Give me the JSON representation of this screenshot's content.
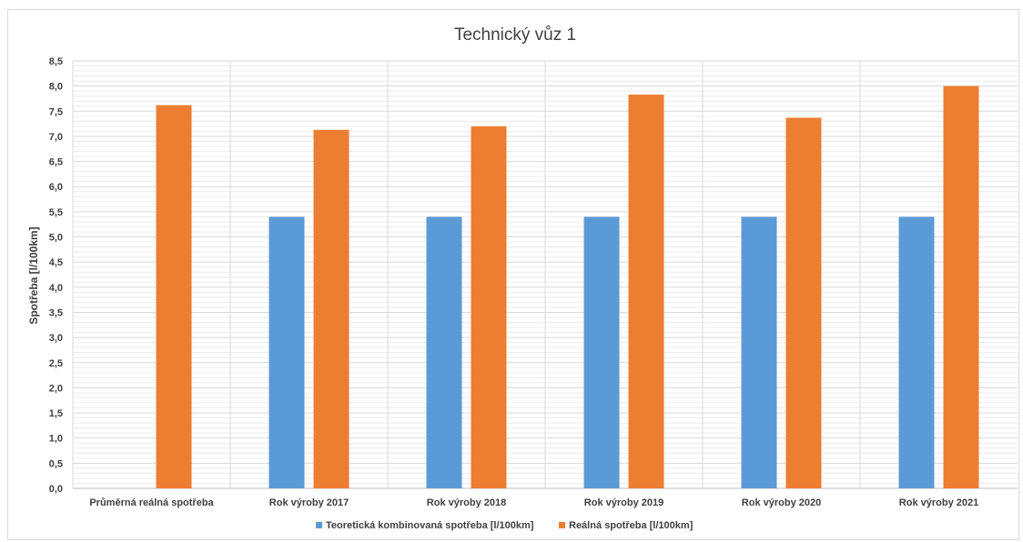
{
  "chart_data": {
    "type": "bar",
    "title": "Technický vůz 1",
    "xlabel": "",
    "ylabel": "Spotřeba [l/100km]",
    "ylim": [
      0,
      8.5
    ],
    "y_ticks": [
      "0,0",
      "0,5",
      "1,0",
      "1,5",
      "2,0",
      "2,5",
      "3,0",
      "3,5",
      "4,0",
      "4,5",
      "5,0",
      "5,5",
      "6,0",
      "6,5",
      "7,0",
      "7,5",
      "8,0",
      "8,5"
    ],
    "grid": true,
    "legend_position": "bottom",
    "categories": [
      "Průměrná reálná spotřeba",
      "Rok výroby 2017",
      "Rok výroby 2018",
      "Rok výroby 2019",
      "Rok výroby 2020",
      "Rok výroby 2021"
    ],
    "series": [
      {
        "name": "Teoretická kombinovaná spotřeba [l/100km]",
        "color": "#5b9bd5",
        "values": [
          null,
          5.4,
          5.4,
          5.4,
          5.4,
          5.4
        ]
      },
      {
        "name": "Reálná spotřeba [l/100km]",
        "color": "#ed7d31",
        "values": [
          7.62,
          7.13,
          7.2,
          7.83,
          7.37,
          8.0
        ]
      }
    ]
  }
}
